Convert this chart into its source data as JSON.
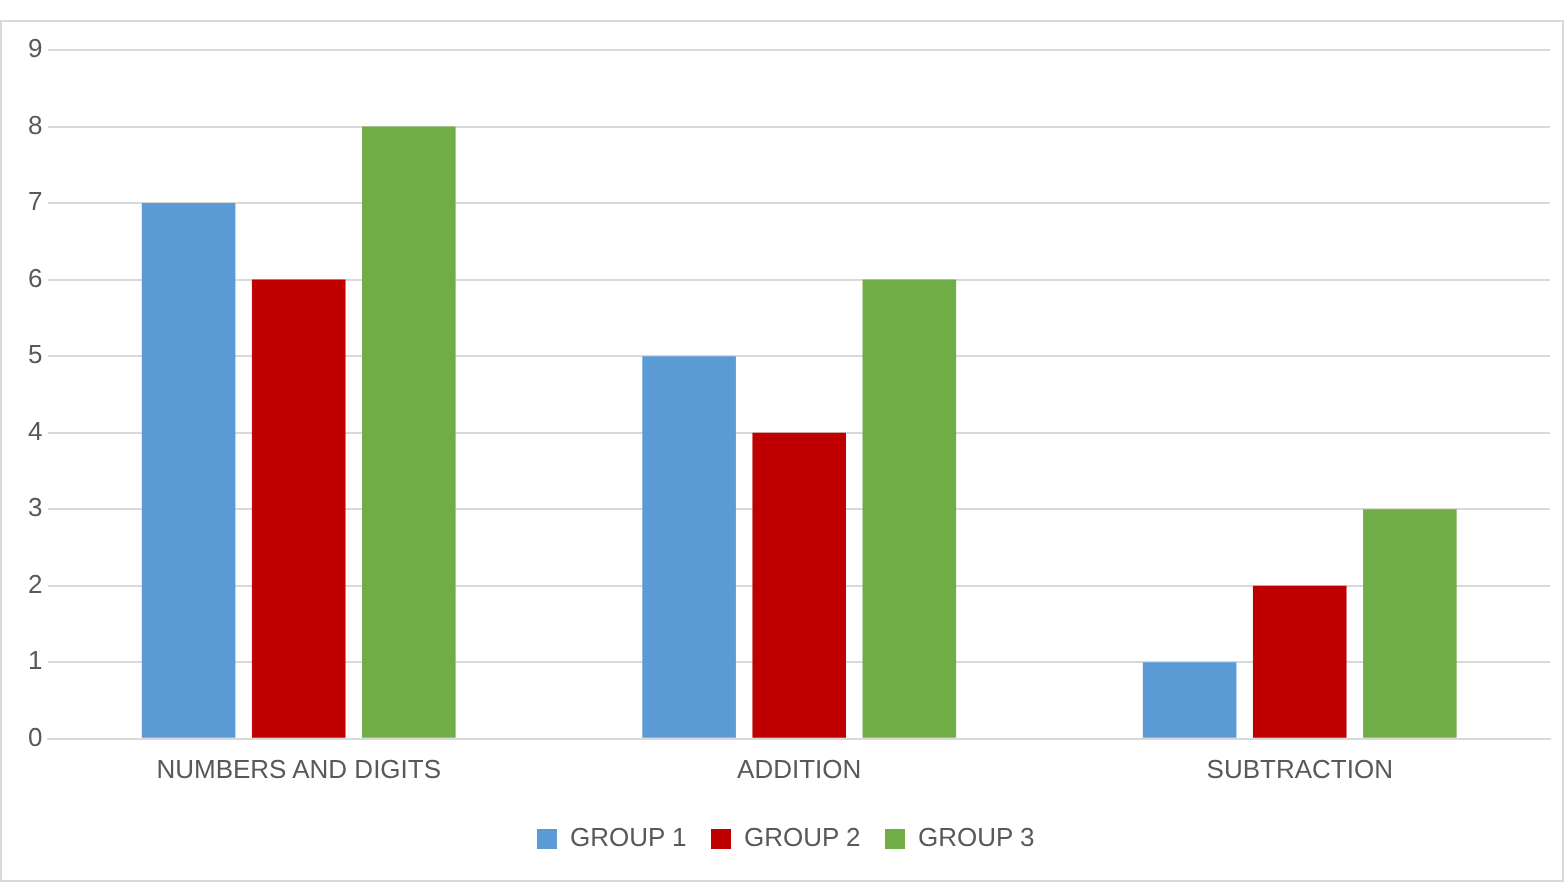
{
  "chart_data": {
    "type": "bar",
    "categories": [
      "NUMBERS AND DIGITS",
      "ADDITION",
      "SUBTRACTION"
    ],
    "series": [
      {
        "name": "GROUP 1",
        "color": "#5b9bd5",
        "values": [
          7,
          5,
          1
        ]
      },
      {
        "name": "GROUP 2",
        "color": "#c00000",
        "values": [
          6,
          4,
          2
        ]
      },
      {
        "name": "GROUP 3",
        "color": "#70ad47",
        "values": [
          8,
          6,
          3
        ]
      }
    ],
    "ylim": [
      0,
      9
    ],
    "yticks": [
      0,
      1,
      2,
      3,
      4,
      5,
      6,
      7,
      8,
      9
    ],
    "grid": "y",
    "legend": "bottom"
  }
}
